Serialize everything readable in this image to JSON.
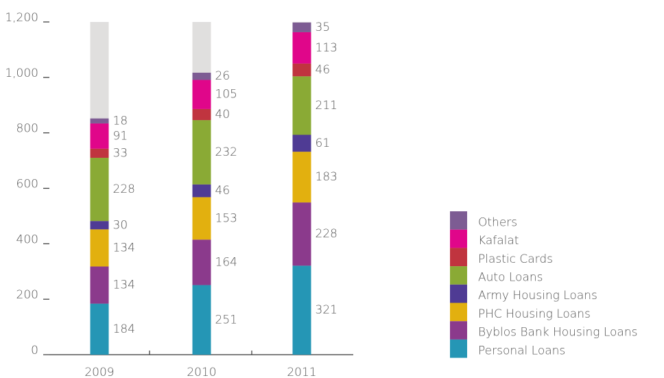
{
  "chart_data": {
    "type": "stacked_bar",
    "categories": [
      "2009",
      "2010",
      "2011"
    ],
    "series": [
      {
        "name": "Personal Loans",
        "color": "#2596b5",
        "values": [
          184,
          251,
          321
        ]
      },
      {
        "name": "Byblos Bank Housing Loans",
        "color": "#8b3a8c",
        "values": [
          134,
          164,
          228
        ]
      },
      {
        "name": "PHC Housing Loans",
        "color": "#e2b00f",
        "values": [
          134,
          153,
          183
        ]
      },
      {
        "name": "Army Housing Loans",
        "color": "#4f3b94",
        "values": [
          30,
          46,
          61
        ]
      },
      {
        "name": "Auto Loans",
        "color": "#8aaa35",
        "values": [
          228,
          232,
          211
        ]
      },
      {
        "name": "Plastic Cards",
        "color": "#c0343f",
        "values": [
          33,
          40,
          46
        ]
      },
      {
        "name": "Kafalat",
        "color": "#e0068a",
        "values": [
          91,
          105,
          113
        ]
      },
      {
        "name": "Others",
        "color": "#7d5c93",
        "values": [
          18,
          26,
          35
        ]
      }
    ],
    "ylim": [
      0,
      1200
    ],
    "yticks": [
      0,
      200,
      400,
      600,
      800,
      {
        "value": 1000,
        "label": "1,000"
      },
      {
        "value": 1200,
        "label": "1,200"
      }
    ],
    "track_color": "#e0dfde",
    "legend": "right"
  }
}
